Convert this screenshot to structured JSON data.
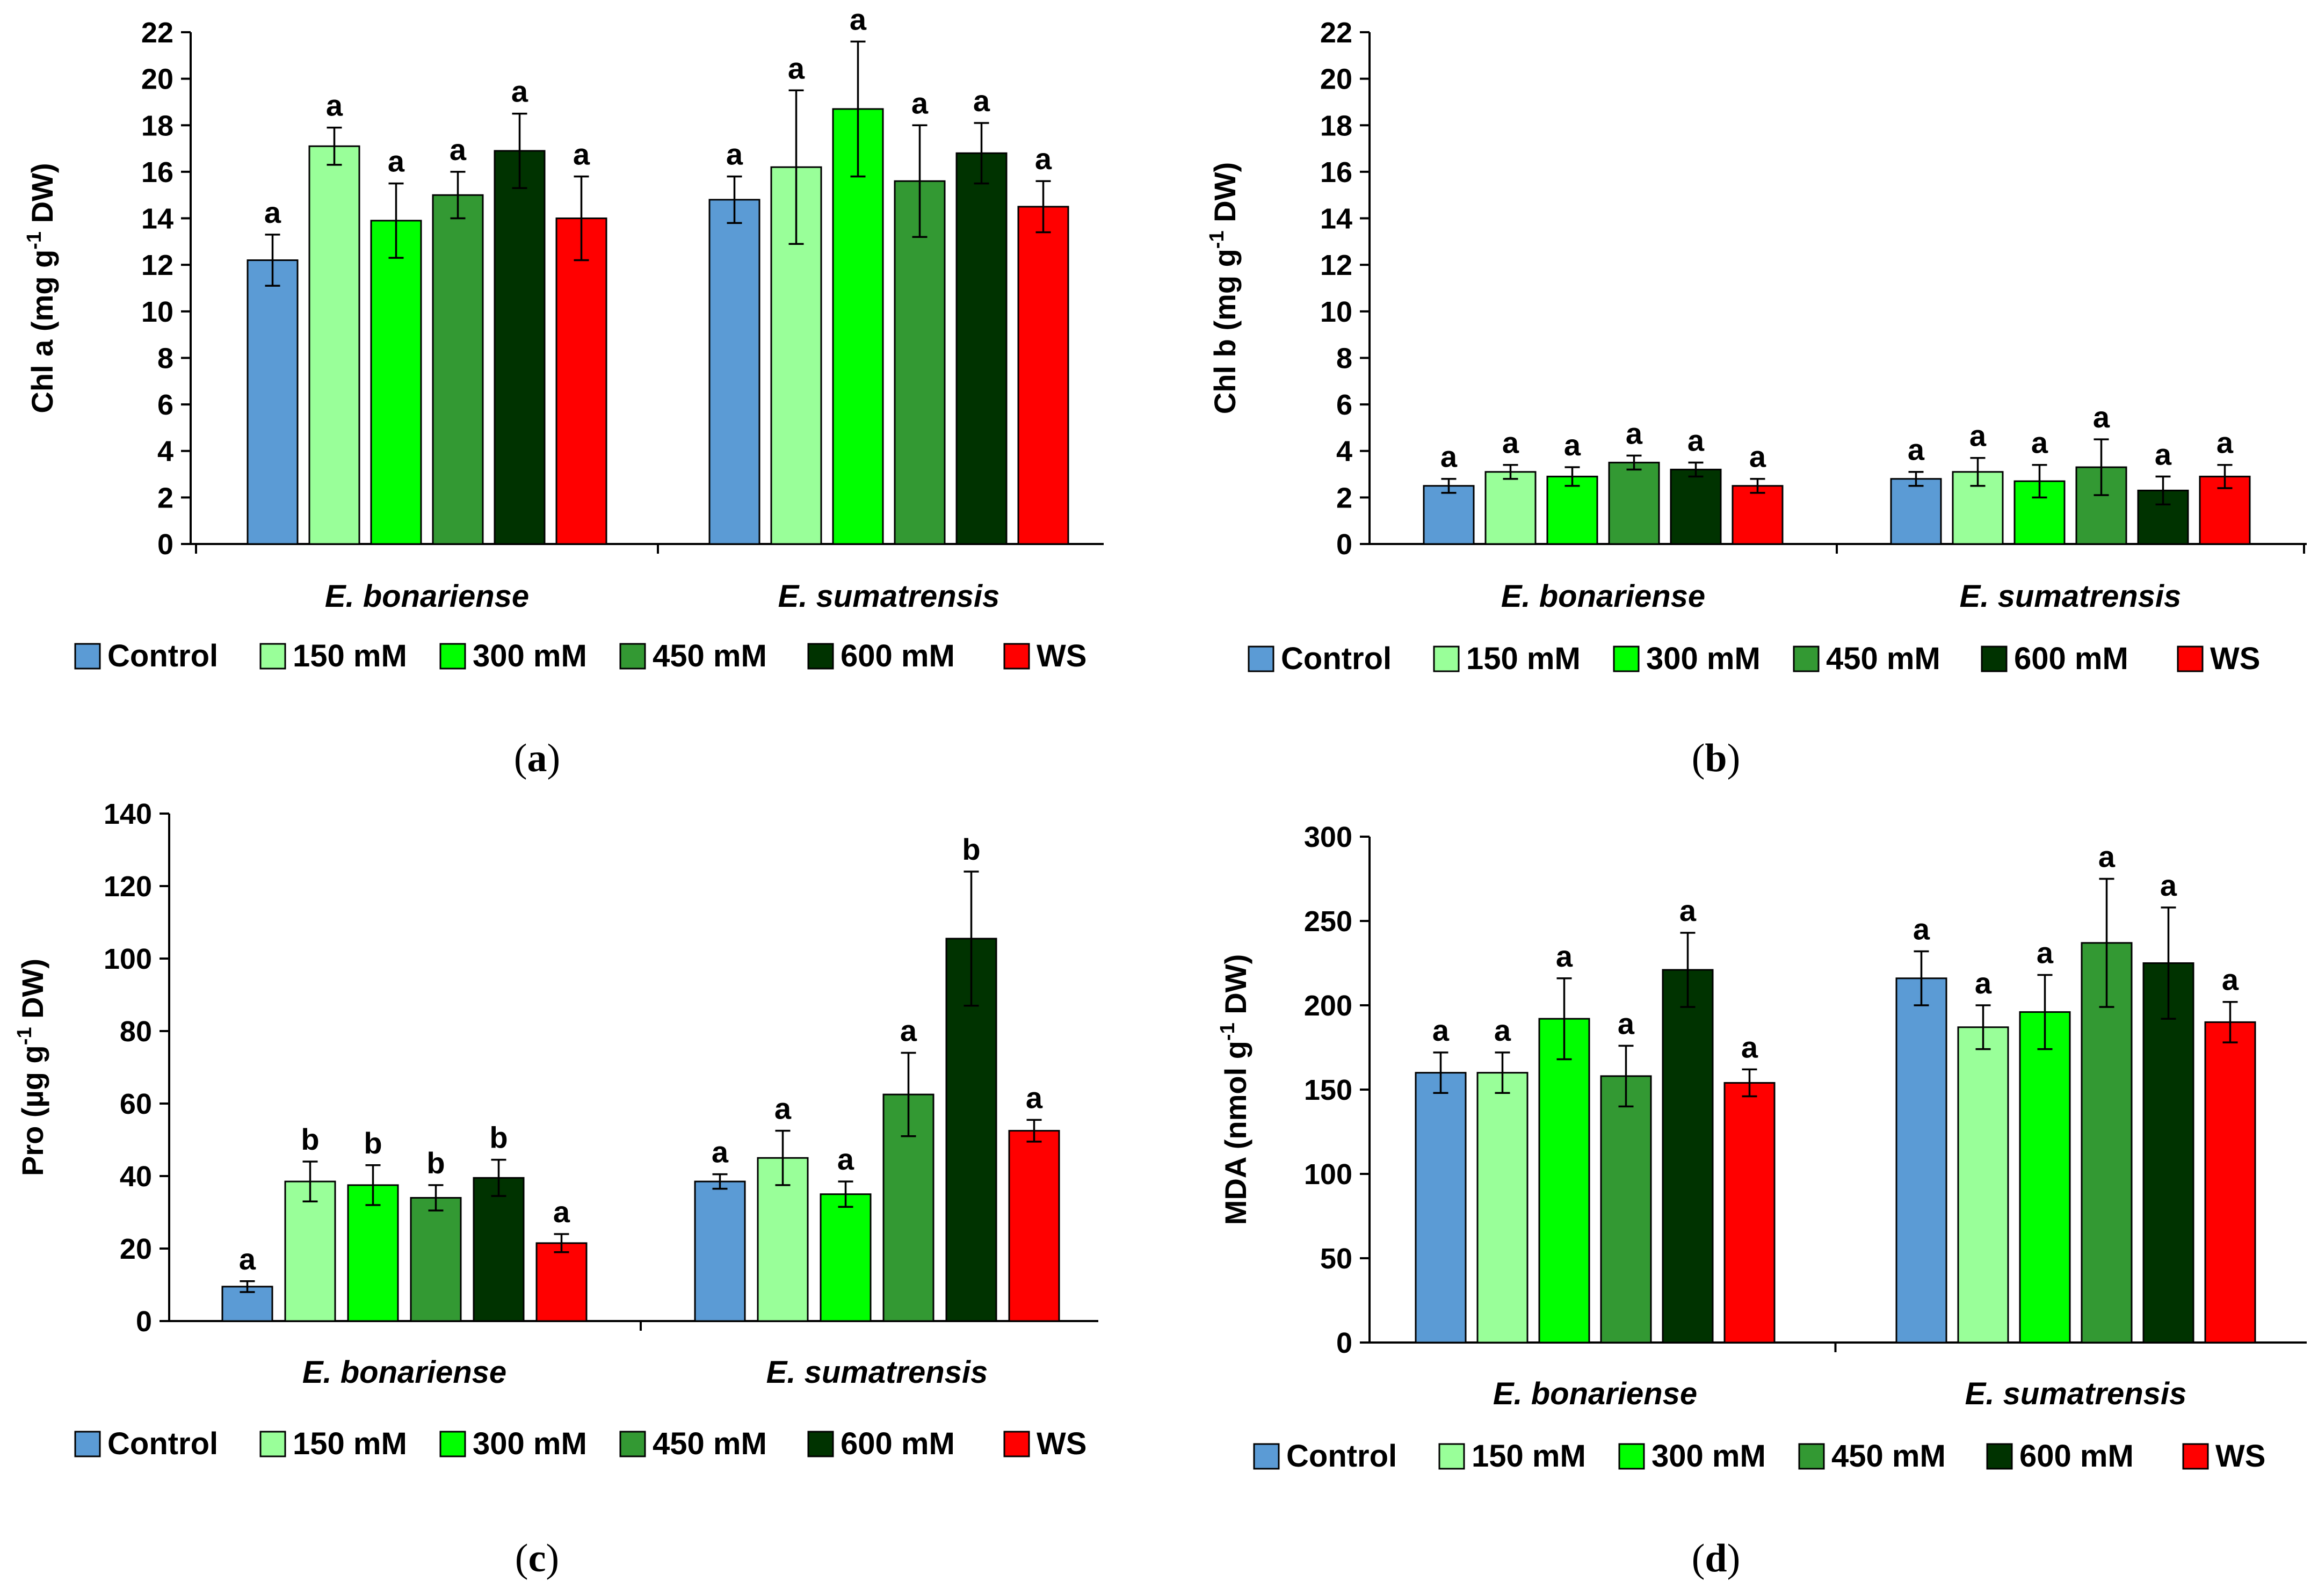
{
  "figure": {
    "panels": [
      "(a)",
      "(b)",
      "(c)",
      "(d)"
    ]
  },
  "legend": {
    "items": [
      {
        "label": "Control",
        "color": "#5b9bd5"
      },
      {
        "label": "150 mM",
        "color": "#99ff99"
      },
      {
        "label": "300 mM",
        "color": "#00ff00"
      },
      {
        "label": "450 mM",
        "color": "#339933"
      },
      {
        "label": "600 mM",
        "color": "#003300"
      },
      {
        "label": "WS",
        "color": "#ff0000"
      }
    ]
  },
  "chart_data": [
    {
      "panel": "(a)",
      "type": "bar",
      "title": "",
      "ylabel": "Chl a (mg g-1 DW)",
      "ylabel_parts": [
        "Chl a (mg g",
        "-1",
        " DW)"
      ],
      "xlabel": "",
      "ylim": [
        0,
        22
      ],
      "yticks": [
        "0",
        "2",
        "4",
        "6",
        "8",
        "10",
        "12",
        "14",
        "16",
        "18",
        "20",
        "22"
      ],
      "categories": [
        "E. bonariense",
        "E. sumatrensis"
      ],
      "series": [
        {
          "name": "Control",
          "values": [
            12.2,
            14.8
          ],
          "errors": [
            1.1,
            1.0
          ],
          "letters": [
            "a",
            "a"
          ]
        },
        {
          "name": "150 mM",
          "values": [
            17.1,
            16.2
          ],
          "errors": [
            0.8,
            3.3
          ],
          "letters": [
            "a",
            "a"
          ]
        },
        {
          "name": "300 mM",
          "values": [
            13.9,
            18.7
          ],
          "errors": [
            1.6,
            2.9
          ],
          "letters": [
            "a",
            "a"
          ]
        },
        {
          "name": "450 mM",
          "values": [
            15.0,
            15.6
          ],
          "errors": [
            1.0,
            2.4
          ],
          "letters": [
            "a",
            "a"
          ]
        },
        {
          "name": "600 mM",
          "values": [
            16.9,
            16.8
          ],
          "errors": [
            1.6,
            1.3
          ],
          "letters": [
            "a",
            "a"
          ]
        },
        {
          "name": "WS",
          "values": [
            14.0,
            14.5
          ],
          "errors": [
            1.8,
            1.1
          ],
          "letters": [
            "a",
            "a"
          ]
        }
      ]
    },
    {
      "panel": "(b)",
      "type": "bar",
      "title": "",
      "ylabel": "Chl b (mg g-1 DW)",
      "ylabel_parts": [
        "Chl b (mg g",
        "-1",
        " DW)"
      ],
      "xlabel": "",
      "ylim": [
        0,
        22
      ],
      "yticks": [
        "0",
        "2",
        "4",
        "6",
        "8",
        "10",
        "12",
        "14",
        "16",
        "18",
        "20",
        "22"
      ],
      "categories": [
        "E. bonariense",
        "E. sumatrensis"
      ],
      "series": [
        {
          "name": "Control",
          "values": [
            2.5,
            2.8
          ],
          "errors": [
            0.3,
            0.3
          ],
          "letters": [
            "a",
            "a"
          ]
        },
        {
          "name": "150 mM",
          "values": [
            3.1,
            3.1
          ],
          "errors": [
            0.3,
            0.6
          ],
          "letters": [
            "a",
            "a"
          ]
        },
        {
          "name": "300 mM",
          "values": [
            2.9,
            2.7
          ],
          "errors": [
            0.4,
            0.7
          ],
          "letters": [
            "a",
            "a"
          ]
        },
        {
          "name": "450 mM",
          "values": [
            3.5,
            3.3
          ],
          "errors": [
            0.3,
            1.2
          ],
          "letters": [
            "a",
            "a"
          ]
        },
        {
          "name": "600 mM",
          "values": [
            3.2,
            2.3
          ],
          "errors": [
            0.3,
            0.6
          ],
          "letters": [
            "a",
            "a"
          ]
        },
        {
          "name": "WS",
          "values": [
            2.5,
            2.9
          ],
          "errors": [
            0.3,
            0.5
          ],
          "letters": [
            "a",
            "a"
          ]
        }
      ]
    },
    {
      "panel": "(c)",
      "type": "bar",
      "title": "",
      "ylabel": "Pro (µg g-1 DW)",
      "ylabel_parts": [
        "Pro (µg g",
        "-1",
        " DW)"
      ],
      "xlabel": "",
      "ylim": [
        0,
        140
      ],
      "yticks": [
        "0",
        "20",
        "40",
        "60",
        "80",
        "100",
        "120",
        "140"
      ],
      "categories": [
        "E. bonariense",
        "E. sumatrensis"
      ],
      "series": [
        {
          "name": "Control",
          "values": [
            9.5,
            38.5
          ],
          "errors": [
            1.5,
            2.0
          ],
          "letters": [
            "a",
            "a"
          ]
        },
        {
          "name": "150 mM",
          "values": [
            38.5,
            45.0
          ],
          "errors": [
            5.5,
            7.5
          ],
          "letters": [
            "b",
            "a"
          ]
        },
        {
          "name": "300 mM",
          "values": [
            37.5,
            35.0
          ],
          "errors": [
            5.5,
            3.5
          ],
          "letters": [
            "b",
            "a"
          ]
        },
        {
          "name": "450 mM",
          "values": [
            34.0,
            62.5
          ],
          "errors": [
            3.5,
            11.5
          ],
          "letters": [
            "b",
            "a"
          ]
        },
        {
          "name": "600 mM",
          "values": [
            39.5,
            105.5
          ],
          "errors": [
            5.0,
            18.5
          ],
          "letters": [
            "b",
            "b"
          ]
        },
        {
          "name": "WS",
          "values": [
            21.5,
            52.5
          ],
          "errors": [
            2.5,
            3.0
          ],
          "letters": [
            "a",
            "a"
          ]
        }
      ]
    },
    {
      "panel": "(d)",
      "type": "bar",
      "title": "",
      "ylabel": "MDA (nmol g-1 DW)",
      "ylabel_parts": [
        "MDA (nmol g",
        "-1",
        " DW)"
      ],
      "xlabel": "",
      "ylim": [
        0,
        300
      ],
      "yticks": [
        "0",
        "50",
        "100",
        "150",
        "200",
        "250",
        "300"
      ],
      "categories": [
        "E. bonariense",
        "E. sumatrensis"
      ],
      "series": [
        {
          "name": "Control",
          "values": [
            160,
            216
          ],
          "errors": [
            12,
            16
          ],
          "letters": [
            "a",
            "a"
          ]
        },
        {
          "name": "150 mM",
          "values": [
            160,
            187
          ],
          "errors": [
            12,
            13
          ],
          "letters": [
            "a",
            "a"
          ]
        },
        {
          "name": "300 mM",
          "values": [
            192,
            196
          ],
          "errors": [
            24,
            22
          ],
          "letters": [
            "a",
            "a"
          ]
        },
        {
          "name": "450 mM",
          "values": [
            158,
            237
          ],
          "errors": [
            18,
            38
          ],
          "letters": [
            "a",
            "a"
          ]
        },
        {
          "name": "600 mM",
          "values": [
            221,
            225
          ],
          "errors": [
            22,
            33
          ],
          "letters": [
            "a",
            "a"
          ]
        },
        {
          "name": "WS",
          "values": [
            154,
            190
          ],
          "errors": [
            8,
            12
          ],
          "letters": [
            "a",
            "a"
          ]
        }
      ]
    }
  ]
}
